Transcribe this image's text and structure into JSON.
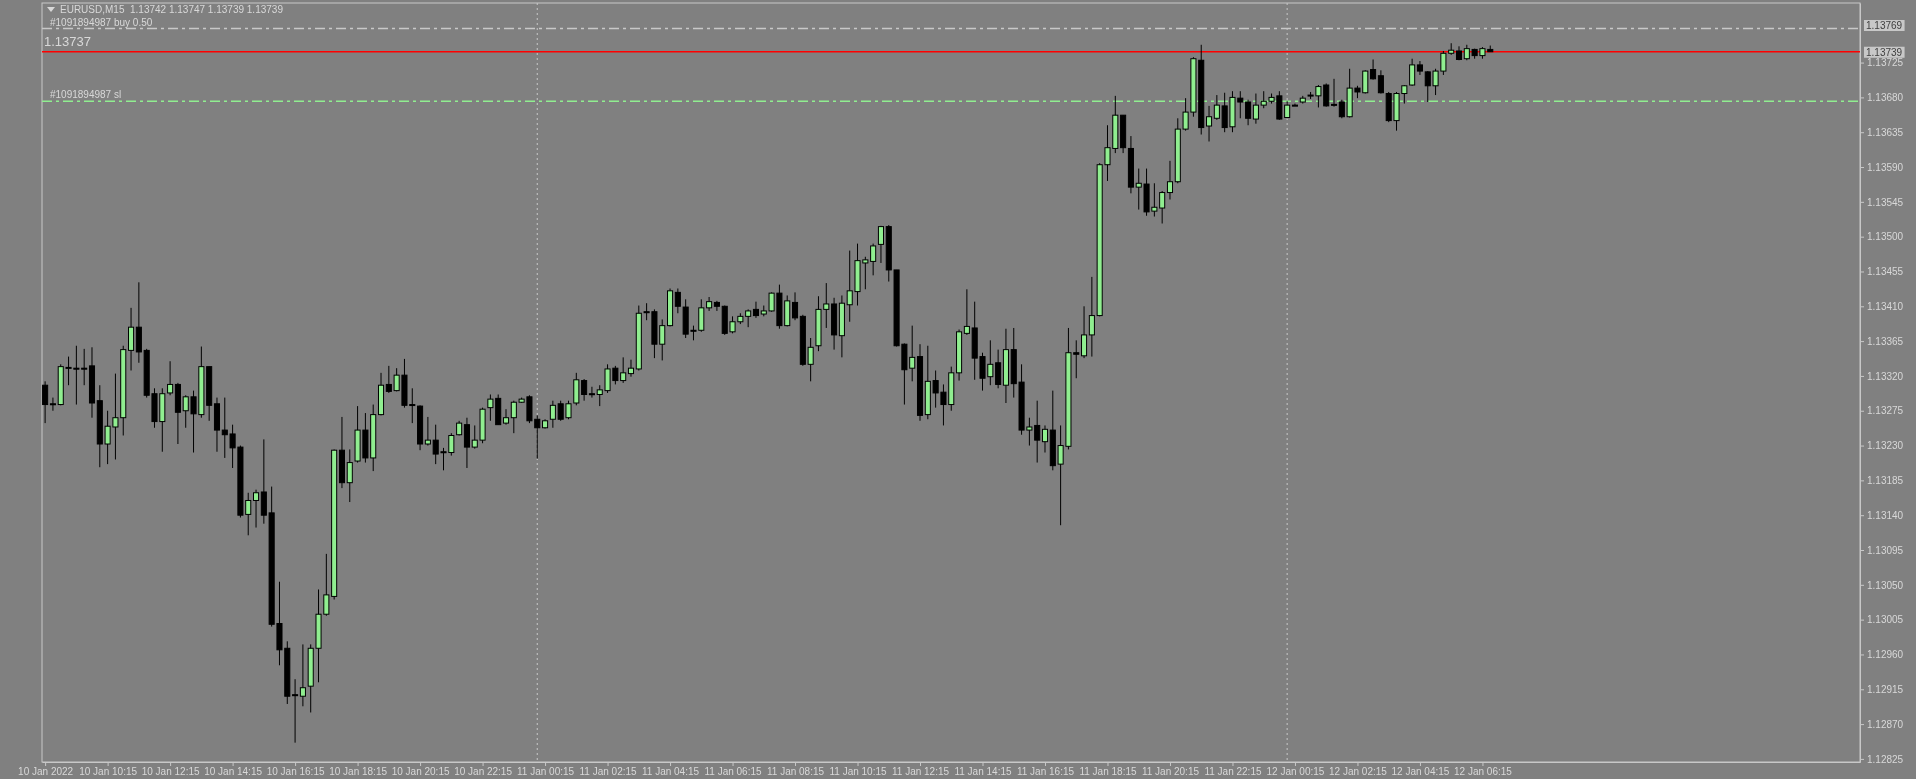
{
  "chart_data": {
    "type": "candlestick",
    "title": "EURUSD,M15  1.13742 1.13747 1.13739 1.13739",
    "annotations": [
      "1.13737",
      "1.13769"
    ],
    "x": [
      "2022-01-10T08:15",
      "2022-01-10T08:30",
      "2022-01-10T08:45",
      "2022-01-10T09:00",
      "2022-01-10T09:15",
      "2022-01-10T09:30",
      "2022-01-10T09:45",
      "2022-01-10T10:00",
      "2022-01-10T10:15",
      "2022-01-10T10:30",
      "2022-01-10T10:45",
      "2022-01-10T11:00",
      "2022-01-10T11:15",
      "2022-01-10T11:30",
      "2022-01-10T11:45",
      "2022-01-10T12:00",
      "2022-01-10T12:15",
      "2022-01-10T12:30",
      "2022-01-10T12:45",
      "2022-01-10T13:00",
      "2022-01-10T13:15",
      "2022-01-10T13:30",
      "2022-01-10T13:45",
      "2022-01-10T14:00",
      "2022-01-10T14:15",
      "2022-01-10T14:30",
      "2022-01-10T14:45",
      "2022-01-10T15:00",
      "2022-01-10T15:15",
      "2022-01-10T15:30",
      "2022-01-10T15:45",
      "2022-01-10T16:00",
      "2022-01-10T16:15",
      "2022-01-10T16:30",
      "2022-01-10T16:45",
      "2022-01-10T17:00",
      "2022-01-10T17:15",
      "2022-01-10T17:30",
      "2022-01-10T17:45",
      "2022-01-10T18:00",
      "2022-01-10T18:15",
      "2022-01-10T18:30",
      "2022-01-10T18:45",
      "2022-01-10T19:00",
      "2022-01-10T19:15",
      "2022-01-10T19:30",
      "2022-01-10T19:45",
      "2022-01-10T20:00",
      "2022-01-10T20:15",
      "2022-01-10T20:30",
      "2022-01-10T20:45",
      "2022-01-10T21:00",
      "2022-01-10T21:15",
      "2022-01-10T21:30",
      "2022-01-10T21:45",
      "2022-01-10T22:00",
      "2022-01-10T22:15",
      "2022-01-10T22:30",
      "2022-01-10T22:45",
      "2022-01-10T23:00",
      "2022-01-10T23:15",
      "2022-01-10T23:30",
      "2022-01-10T23:45",
      "2022-01-11T00:00",
      "2022-01-11T00:15",
      "2022-01-11T00:30",
      "2022-01-11T00:45",
      "2022-01-11T01:00",
      "2022-01-11T01:15",
      "2022-01-11T01:30",
      "2022-01-11T01:45",
      "2022-01-11T02:00",
      "2022-01-11T02:15",
      "2022-01-11T02:30",
      "2022-01-11T02:45",
      "2022-01-11T03:00",
      "2022-01-11T03:15",
      "2022-01-11T03:30",
      "2022-01-11T03:45",
      "2022-01-11T04:00",
      "2022-01-11T04:15",
      "2022-01-11T04:30",
      "2022-01-11T04:45",
      "2022-01-11T05:00",
      "2022-01-11T05:15",
      "2022-01-11T05:30",
      "2022-01-11T05:45",
      "2022-01-11T06:00",
      "2022-01-11T06:15",
      "2022-01-11T06:30",
      "2022-01-11T06:45",
      "2022-01-11T07:00",
      "2022-01-11T07:15",
      "2022-01-11T07:30",
      "2022-01-11T07:45",
      "2022-01-11T08:00",
      "2022-01-11T08:15",
      "2022-01-11T08:30",
      "2022-01-11T08:45",
      "2022-01-11T09:00",
      "2022-01-11T09:15",
      "2022-01-11T09:30",
      "2022-01-11T09:45",
      "2022-01-11T10:00",
      "2022-01-11T10:15",
      "2022-01-11T10:30",
      "2022-01-11T10:45",
      "2022-01-11T11:00",
      "2022-01-11T11:15",
      "2022-01-11T11:30",
      "2022-01-11T11:45",
      "2022-01-11T12:00",
      "2022-01-11T12:15",
      "2022-01-11T12:30",
      "2022-01-11T12:45",
      "2022-01-11T13:00",
      "2022-01-11T13:15",
      "2022-01-11T13:30",
      "2022-01-11T13:45",
      "2022-01-11T14:00",
      "2022-01-11T14:15",
      "2022-01-11T14:30",
      "2022-01-11T14:45",
      "2022-01-11T15:00",
      "2022-01-11T15:15",
      "2022-01-11T15:30",
      "2022-01-11T15:45",
      "2022-01-11T16:00",
      "2022-01-11T16:15",
      "2022-01-11T16:30",
      "2022-01-11T16:45",
      "2022-01-11T17:00",
      "2022-01-11T17:15",
      "2022-01-11T17:30",
      "2022-01-11T17:45",
      "2022-01-11T18:00",
      "2022-01-11T18:15",
      "2022-01-11T18:30",
      "2022-01-11T18:45",
      "2022-01-11T19:00",
      "2022-01-11T19:15",
      "2022-01-11T19:30",
      "2022-01-11T19:45",
      "2022-01-11T20:00",
      "2022-01-11T20:15",
      "2022-01-11T20:30",
      "2022-01-11T20:45",
      "2022-01-11T21:00",
      "2022-01-11T21:15",
      "2022-01-11T21:30",
      "2022-01-11T21:45",
      "2022-01-11T22:00",
      "2022-01-11T22:15",
      "2022-01-11T22:30",
      "2022-01-11T22:45",
      "2022-01-11T23:00",
      "2022-01-11T23:15",
      "2022-01-11T23:30",
      "2022-01-11T23:45",
      "2022-01-12T00:00",
      "2022-01-12T00:15",
      "2022-01-12T00:30",
      "2022-01-12T00:45",
      "2022-01-12T01:00",
      "2022-01-12T01:15",
      "2022-01-12T01:30",
      "2022-01-12T01:45",
      "2022-01-12T02:00",
      "2022-01-12T02:15",
      "2022-01-12T02:30",
      "2022-01-12T02:45",
      "2022-01-12T03:00",
      "2022-01-12T03:15",
      "2022-01-12T03:30",
      "2022-01-12T03:45",
      "2022-01-12T04:00",
      "2022-01-12T04:15",
      "2022-01-12T04:30",
      "2022-01-12T04:45",
      "2022-01-12T05:00",
      "2022-01-12T05:15",
      "2022-01-12T05:30",
      "2022-01-12T05:45",
      "2022-01-12T06:00",
      "2022-01-12T06:15",
      "2022-01-12T06:30"
    ],
    "ohlc": [
      [
        1.13308,
        1.13313,
        1.13259,
        1.13283
      ],
      [
        1.13284,
        1.13292,
        1.13275,
        1.13283
      ],
      [
        1.13283,
        1.13335,
        1.13282,
        1.13332
      ],
      [
        1.1333,
        1.13345,
        1.13308,
        1.13331
      ],
      [
        1.1333,
        1.13359,
        1.13283,
        1.1333
      ],
      [
        1.1333,
        1.13355,
        1.13308,
        1.1333
      ],
      [
        1.13333,
        1.13357,
        1.13266,
        1.13285
      ],
      [
        1.13288,
        1.13308,
        1.13202,
        1.13232
      ],
      [
        1.13232,
        1.13275,
        1.13206,
        1.13255
      ],
      [
        1.13254,
        1.13323,
        1.13212,
        1.13266
      ],
      [
        1.13266,
        1.13359,
        1.13243,
        1.13354
      ],
      [
        1.13353,
        1.13408,
        1.13327,
        1.13383
      ],
      [
        1.13383,
        1.13441,
        1.13337,
        1.13351
      ],
      [
        1.13353,
        1.13355,
        1.13292,
        1.13295
      ],
      [
        1.13297,
        1.13304,
        1.13253,
        1.13261
      ],
      [
        1.13261,
        1.13304,
        1.13222,
        1.13297
      ],
      [
        1.13298,
        1.13339,
        1.13295,
        1.13309
      ],
      [
        1.13309,
        1.13311,
        1.13232,
        1.13273
      ],
      [
        1.13275,
        1.13295,
        1.13253,
        1.13293
      ],
      [
        1.13293,
        1.13301,
        1.13221,
        1.13271
      ],
      [
        1.1327,
        1.13358,
        1.13266,
        1.13332
      ],
      [
        1.13332,
        1.13332,
        1.13262,
        1.13282
      ],
      [
        1.13284,
        1.13292,
        1.13222,
        1.1325
      ],
      [
        1.1325,
        1.13292,
        1.13214,
        1.13244
      ],
      [
        1.13245,
        1.13257,
        1.13201,
        1.13227
      ],
      [
        1.13228,
        1.1323,
        1.13137,
        1.1314
      ],
      [
        1.13141,
        1.13169,
        1.13114,
        1.13159
      ],
      [
        1.13159,
        1.13173,
        1.13124,
        1.13169
      ],
      [
        1.1317,
        1.13238,
        1.13129,
        1.1314
      ],
      [
        1.13143,
        1.13177,
        1.12996,
        1.12999
      ],
      [
        1.13,
        1.13054,
        1.12946,
        1.12966
      ],
      [
        1.12968,
        1.12977,
        1.12896,
        1.12906
      ],
      [
        1.12908,
        1.12928,
        1.12846,
        1.12907
      ],
      [
        1.12906,
        1.12973,
        1.12893,
        1.12917
      ],
      [
        1.12919,
        1.12973,
        1.12885,
        1.12968
      ],
      [
        1.12968,
        1.13044,
        1.12924,
        1.13012
      ],
      [
        1.13012,
        1.1309,
        1.1301,
        1.13037
      ],
      [
        1.13035,
        1.13225,
        1.13031,
        1.13224
      ],
      [
        1.13224,
        1.13267,
        1.13175,
        1.13182
      ],
      [
        1.13182,
        1.13225,
        1.13157,
        1.13208
      ],
      [
        1.1321,
        1.13281,
        1.13208,
        1.1325
      ],
      [
        1.1325,
        1.13272,
        1.13208,
        1.13214
      ],
      [
        1.13214,
        1.13283,
        1.13197,
        1.1327
      ],
      [
        1.1327,
        1.13324,
        1.13269,
        1.13308
      ],
      [
        1.13309,
        1.13333,
        1.13298,
        1.133
      ],
      [
        1.13301,
        1.1333,
        1.133,
        1.13321
      ],
      [
        1.13321,
        1.13342,
        1.13279,
        1.13282
      ],
      [
        1.13283,
        1.13304,
        1.13259,
        1.13283
      ],
      [
        1.13281,
        1.13282,
        1.13224,
        1.13232
      ],
      [
        1.13232,
        1.13267,
        1.1323,
        1.13237
      ],
      [
        1.13237,
        1.13257,
        1.13206,
        1.13219
      ],
      [
        1.13222,
        1.13227,
        1.13198,
        1.13222
      ],
      [
        1.13221,
        1.13246,
        1.13217,
        1.13243
      ],
      [
        1.13244,
        1.13262,
        1.13243,
        1.13259
      ],
      [
        1.13257,
        1.13266,
        1.13201,
        1.13228
      ],
      [
        1.13228,
        1.13256,
        1.13226,
        1.13237
      ],
      [
        1.13237,
        1.13279,
        1.13233,
        1.13277
      ],
      [
        1.13279,
        1.13296,
        1.13262,
        1.1329
      ],
      [
        1.13291,
        1.13296,
        1.13257,
        1.13257
      ],
      [
        1.13259,
        1.13277,
        1.13257,
        1.13266
      ],
      [
        1.13266,
        1.13288,
        1.13246,
        1.13286
      ],
      [
        1.13286,
        1.13292,
        1.13285,
        1.1329
      ],
      [
        1.13293,
        1.13295,
        1.13259,
        1.13262
      ],
      [
        1.13264,
        1.13269,
        1.13213,
        1.13253
      ],
      [
        1.13253,
        1.13264,
        1.13252,
        1.13262
      ],
      [
        1.13264,
        1.13288,
        1.13253,
        1.13282
      ],
      [
        1.13284,
        1.13288,
        1.13262,
        1.13264
      ],
      [
        1.13266,
        1.13288,
        1.13264,
        1.13284
      ],
      [
        1.13285,
        1.13324,
        1.13282,
        1.13315
      ],
      [
        1.13314,
        1.13316,
        1.13288,
        1.13296
      ],
      [
        1.13297,
        1.13306,
        1.13292,
        1.13296
      ],
      [
        1.13296,
        1.13308,
        1.13281,
        1.13302
      ],
      [
        1.13301,
        1.13335,
        1.13298,
        1.13329
      ],
      [
        1.1333,
        1.13333,
        1.13309,
        1.13314
      ],
      [
        1.13314,
        1.13344,
        1.13311,
        1.13324
      ],
      [
        1.13323,
        1.13341,
        1.13319,
        1.1333
      ],
      [
        1.13329,
        1.13411,
        1.13327,
        1.13401
      ],
      [
        1.13403,
        1.13414,
        1.13392,
        1.13402
      ],
      [
        1.13403,
        1.13406,
        1.13343,
        1.13361
      ],
      [
        1.13361,
        1.13393,
        1.1334,
        1.13385
      ],
      [
        1.13385,
        1.13433,
        1.13384,
        1.1343
      ],
      [
        1.13428,
        1.13433,
        1.13401,
        1.1341
      ],
      [
        1.13409,
        1.13419,
        1.13369,
        1.13374
      ],
      [
        1.13379,
        1.13385,
        1.13366,
        1.13378
      ],
      [
        1.13379,
        1.13419,
        1.13377,
        1.13408
      ],
      [
        1.13408,
        1.13422,
        1.13404,
        1.13416
      ],
      [
        1.13415,
        1.13417,
        1.13404,
        1.1341
      ],
      [
        1.1341,
        1.13411,
        1.13373,
        1.13375
      ],
      [
        1.13377,
        1.13397,
        1.13375,
        1.1339
      ],
      [
        1.1339,
        1.13401,
        1.13387,
        1.13397
      ],
      [
        1.13397,
        1.13406,
        1.13383,
        1.13404
      ],
      [
        1.13406,
        1.13416,
        1.13395,
        1.13398
      ],
      [
        1.134,
        1.13411,
        1.13397,
        1.13404
      ],
      [
        1.13404,
        1.13428,
        1.13403,
        1.13427
      ],
      [
        1.13427,
        1.13438,
        1.13381,
        1.13385
      ],
      [
        1.13385,
        1.13424,
        1.13384,
        1.13417
      ],
      [
        1.13415,
        1.13428,
        1.13392,
        1.13395
      ],
      [
        1.13397,
        1.13399,
        1.13333,
        1.13335
      ],
      [
        1.13335,
        1.13369,
        1.13313,
        1.13357
      ],
      [
        1.13359,
        1.13423,
        1.13352,
        1.13406
      ],
      [
        1.13406,
        1.1344,
        1.13382,
        1.13413
      ],
      [
        1.13413,
        1.13421,
        1.13354,
        1.13373
      ],
      [
        1.13372,
        1.13424,
        1.13344,
        1.13414
      ],
      [
        1.13412,
        1.13482,
        1.1339,
        1.1343
      ],
      [
        1.13429,
        1.13491,
        1.13411,
        1.13469
      ],
      [
        1.13466,
        1.13474,
        1.13432,
        1.1347
      ],
      [
        1.13468,
        1.13491,
        1.1345,
        1.13488
      ],
      [
        1.1349,
        1.13514,
        1.13466,
        1.13513
      ],
      [
        1.13513,
        1.13515,
        1.13442,
        1.13457
      ],
      [
        1.13457,
        1.13457,
        1.13358,
        1.13359
      ],
      [
        1.13361,
        1.13362,
        1.13283,
        1.13328
      ],
      [
        1.1333,
        1.13385,
        1.13313,
        1.13344
      ],
      [
        1.13345,
        1.13361,
        1.13262,
        1.13269
      ],
      [
        1.1327,
        1.13359,
        1.13264,
        1.13313
      ],
      [
        1.13314,
        1.13327,
        1.13279,
        1.13298
      ],
      [
        1.13299,
        1.13309,
        1.13256,
        1.13283
      ],
      [
        1.13283,
        1.13332,
        1.13275,
        1.13324
      ],
      [
        1.13324,
        1.1338,
        1.13314,
        1.13377
      ],
      [
        1.13375,
        1.13432,
        1.13373,
        1.13384
      ],
      [
        1.13382,
        1.13416,
        1.13315,
        1.13343
      ],
      [
        1.13345,
        1.1335,
        1.13301,
        1.13317
      ],
      [
        1.13319,
        1.13366,
        1.13308,
        1.13335
      ],
      [
        1.13337,
        1.13354,
        1.13304,
        1.13309
      ],
      [
        1.13308,
        1.13381,
        1.13285,
        1.13354
      ],
      [
        1.13354,
        1.13382,
        1.13292,
        1.1331
      ],
      [
        1.13312,
        1.13335,
        1.13244,
        1.1325
      ],
      [
        1.1325,
        1.13266,
        1.1323,
        1.13254
      ],
      [
        1.13256,
        1.13288,
        1.13208,
        1.13237
      ],
      [
        1.13235,
        1.13256,
        1.13221,
        1.13251
      ],
      [
        1.1325,
        1.13301,
        1.13198,
        1.13204
      ],
      [
        1.13206,
        1.13256,
        1.13127,
        1.1323
      ],
      [
        1.13229,
        1.13382,
        1.13225,
        1.1335
      ],
      [
        1.1335,
        1.13366,
        1.13317,
        1.13348
      ],
      [
        1.13346,
        1.1341,
        1.13343,
        1.13373
      ],
      [
        1.13373,
        1.13448,
        1.13345,
        1.13398
      ],
      [
        1.13398,
        1.13595,
        1.13397,
        1.13593
      ],
      [
        1.13593,
        1.13644,
        1.13572,
        1.13615
      ],
      [
        1.13614,
        1.13682,
        1.13608,
        1.13657
      ],
      [
        1.13657,
        1.13657,
        1.13608,
        1.13615
      ],
      [
        1.13614,
        1.1363,
        1.13556,
        1.13564
      ],
      [
        1.13564,
        1.13588,
        1.13535,
        1.13569
      ],
      [
        1.13568,
        1.13588,
        1.13527,
        1.13532
      ],
      [
        1.13533,
        1.13569,
        1.13526,
        1.13538
      ],
      [
        1.13537,
        1.13559,
        1.13517,
        1.13557
      ],
      [
        1.13557,
        1.13598,
        1.13548,
        1.13571
      ],
      [
        1.13571,
        1.13653,
        1.13569,
        1.13639
      ],
      [
        1.13639,
        1.13679,
        1.13637,
        1.13661
      ],
      [
        1.13661,
        1.13732,
        1.13655,
        1.1373
      ],
      [
        1.13728,
        1.13748,
        1.13632,
        1.13641
      ],
      [
        1.13643,
        1.13669,
        1.13623,
        1.13655
      ],
      [
        1.13653,
        1.13683,
        1.13651,
        1.1367
      ],
      [
        1.13669,
        1.13686,
        1.13635,
        1.13641
      ],
      [
        1.13642,
        1.13688,
        1.13635,
        1.1368
      ],
      [
        1.13679,
        1.13688,
        1.13653,
        1.13674
      ],
      [
        1.13674,
        1.13677,
        1.13644,
        1.13653
      ],
      [
        1.13652,
        1.13685,
        1.13646,
        1.1367
      ],
      [
        1.1367,
        1.13688,
        1.13666,
        1.13675
      ],
      [
        1.13675,
        1.13685,
        1.13672,
        1.1368
      ],
      [
        1.13682,
        1.13688,
        1.13651,
        1.13652
      ],
      [
        1.13654,
        1.13675,
        1.13653,
        1.1367
      ],
      [
        1.1367,
        1.13672,
        1.13669,
        1.1367
      ],
      [
        1.13674,
        1.13682,
        1.13672,
        1.13679
      ],
      [
        1.13683,
        1.13687,
        1.13678,
        1.13683
      ],
      [
        1.13682,
        1.13696,
        1.13667,
        1.13694
      ],
      [
        1.13696,
        1.13698,
        1.13668,
        1.13669
      ],
      [
        1.13671,
        1.13704,
        1.13668,
        1.1367
      ],
      [
        1.13674,
        1.13677,
        1.13653,
        1.13655
      ],
      [
        1.13655,
        1.13717,
        1.13654,
        1.13692
      ],
      [
        1.13692,
        1.13695,
        1.13679,
        1.13687
      ],
      [
        1.13686,
        1.13715,
        1.13685,
        1.13714
      ],
      [
        1.13716,
        1.13729,
        1.13703,
        1.13704
      ],
      [
        1.13708,
        1.13715,
        1.13685,
        1.13686
      ],
      [
        1.13685,
        1.13687,
        1.13648,
        1.1365
      ],
      [
        1.1365,
        1.13687,
        1.13637,
        1.13685
      ],
      [
        1.13685,
        1.13696,
        1.13672,
        1.13695
      ],
      [
        1.13696,
        1.1373,
        1.13695,
        1.13722
      ],
      [
        1.13722,
        1.13727,
        1.13709,
        1.13714
      ],
      [
        1.13713,
        1.13714,
        1.13674,
        1.13695
      ],
      [
        1.13695,
        1.13717,
        1.13683,
        1.13714
      ],
      [
        1.13714,
        1.1374,
        1.13709,
        1.13737
      ],
      [
        1.13737,
        1.1375,
        1.13735,
        1.13741
      ],
      [
        1.1374,
        1.13746,
        1.13728,
        1.13729
      ],
      [
        1.1373,
        1.13748,
        1.13728,
        1.13743
      ],
      [
        1.13742,
        1.13743,
        1.1373,
        1.13734
      ],
      [
        1.13734,
        1.13745,
        1.1373,
        1.13743
      ],
      [
        1.13742,
        1.13747,
        1.13739,
        1.13739
      ]
    ],
    "colors": [
      "#000000",
      "#000000",
      "#90ee90",
      "#90ee90",
      "#000000",
      "#000000",
      "#000000",
      "#000000",
      "#90ee90",
      "#90ee90",
      "#90ee90",
      "#90ee90",
      "#000000",
      "#000000",
      "#000000",
      "#90ee90",
      "#90ee90",
      "#000000",
      "#90ee90",
      "#000000",
      "#90ee90",
      "#000000",
      "#000000",
      "#000000",
      "#000000",
      "#000000",
      "#90ee90",
      "#90ee90",
      "#000000",
      "#000000",
      "#000000",
      "#000000",
      "#000000",
      "#90ee90",
      "#90ee90",
      "#90ee90",
      "#90ee90",
      "#90ee90",
      "#000000",
      "#90ee90",
      "#90ee90",
      "#000000",
      "#90ee90",
      "#90ee90",
      "#000000",
      "#90ee90",
      "#000000",
      "#000000",
      "#000000",
      "#90ee90",
      "#000000",
      "#000000",
      "#90ee90",
      "#90ee90",
      "#000000",
      "#90ee90",
      "#90ee90",
      "#90ee90",
      "#000000",
      "#90ee90",
      "#90ee90",
      "#90ee90",
      "#000000",
      "#000000",
      "#90ee90",
      "#90ee90",
      "#000000",
      "#90ee90",
      "#90ee90",
      "#000000",
      "#000000",
      "#90ee90",
      "#90ee90",
      "#000000",
      "#90ee90",
      "#90ee90",
      "#90ee90",
      "#000000",
      "#000000",
      "#90ee90",
      "#90ee90",
      "#000000",
      "#000000",
      "#000000",
      "#90ee90",
      "#90ee90",
      "#000000",
      "#000000",
      "#90ee90",
      "#90ee90",
      "#90ee90",
      "#000000",
      "#90ee90",
      "#90ee90",
      "#000000",
      "#90ee90",
      "#000000",
      "#000000",
      "#90ee90",
      "#90ee90",
      "#90ee90",
      "#000000",
      "#90ee90",
      "#90ee90",
      "#90ee90",
      "#90ee90",
      "#90ee90",
      "#90ee90",
      "#000000",
      "#000000",
      "#000000",
      "#90ee90",
      "#000000",
      "#90ee90",
      "#000000",
      "#000000",
      "#90ee90",
      "#90ee90",
      "#90ee90",
      "#000000",
      "#000000",
      "#90ee90",
      "#000000",
      "#90ee90",
      "#000000",
      "#000000",
      "#90ee90",
      "#000000",
      "#90ee90",
      "#000000",
      "#90ee90",
      "#90ee90",
      "#000000",
      "#90ee90",
      "#90ee90",
      "#90ee90",
      "#90ee90",
      "#90ee90",
      "#000000",
      "#000000",
      "#90ee90",
      "#000000",
      "#90ee90",
      "#90ee90",
      "#90ee90",
      "#90ee90",
      "#90ee90",
      "#90ee90",
      "#000000",
      "#90ee90",
      "#90ee90",
      "#000000",
      "#90ee90",
      "#000000",
      "#000000",
      "#90ee90",
      "#90ee90",
      "#90ee90",
      "#000000",
      "#90ee90",
      "#000000",
      "#90ee90",
      "#000000",
      "#90ee90",
      "#000000",
      "#000000",
      "#000000",
      "#90ee90",
      "#000000",
      "#90ee90",
      "#000000",
      "#000000",
      "#000000",
      "#90ee90",
      "#90ee90",
      "#90ee90",
      "#000000",
      "#000000",
      "#90ee90",
      "#90ee90",
      "#90ee90",
      "#000000",
      "#90ee90",
      "#000000",
      "#90ee90",
      "#000000"
    ],
    "xlim": [
      "2022-01-10T08:09",
      "2022-01-12T18:20"
    ],
    "xticks": [
      {
        "value": "2022-01-10T08:15",
        "label": "10 Jan 2022"
      },
      {
        "value": "2022-01-10T10:15",
        "label": "10 Jan 10:15"
      },
      {
        "value": "2022-01-10T12:15",
        "label": "10 Jan 12:15"
      },
      {
        "value": "2022-01-10T14:15",
        "label": "10 Jan 14:15"
      },
      {
        "value": "2022-01-10T16:15",
        "label": "10 Jan 16:15"
      },
      {
        "value": "2022-01-10T18:15",
        "label": "10 Jan 18:15"
      },
      {
        "value": "2022-01-10T20:15",
        "label": "10 Jan 20:15"
      },
      {
        "value": "2022-01-10T22:15",
        "label": "10 Jan 22:15"
      },
      {
        "value": "2022-01-11T00:15",
        "label": "11 Jan 00:15"
      },
      {
        "value": "2022-01-11T02:15",
        "label": "11 Jan 02:15"
      },
      {
        "value": "2022-01-11T04:15",
        "label": "11 Jan 04:15"
      },
      {
        "value": "2022-01-11T06:15",
        "label": "11 Jan 06:15"
      },
      {
        "value": "2022-01-11T08:15",
        "label": "11 Jan 08:15"
      },
      {
        "value": "2022-01-11T10:15",
        "label": "11 Jan 10:15"
      },
      {
        "value": "2022-01-11T12:15",
        "label": "11 Jan 12:15"
      },
      {
        "value": "2022-01-11T14:15",
        "label": "11 Jan 14:15"
      },
      {
        "value": "2022-01-11T16:15",
        "label": "11 Jan 16:15"
      },
      {
        "value": "2022-01-11T18:15",
        "label": "11 Jan 18:15"
      },
      {
        "value": "2022-01-11T20:15",
        "label": "11 Jan 20:15"
      },
      {
        "value": "2022-01-11T22:15",
        "label": "11 Jan 22:15"
      },
      {
        "value": "2022-01-12T00:15",
        "label": "12 Jan 00:15"
      },
      {
        "value": "2022-01-12T02:15",
        "label": "12 Jan 02:15"
      },
      {
        "value": "2022-01-12T04:15",
        "label": "12 Jan 04:15"
      },
      {
        "value": "2022-01-12T06:15",
        "label": "12 Jan 06:15"
      }
    ],
    "ylim": [
      1.12821,
      1.13802
    ],
    "yticks": [
      1.13725,
      {
        "value": 1.1368,
        "label": "1.13680"
      },
      1.13635,
      {
        "value": 1.1359,
        "label": "1.13590"
      },
      1.13545,
      {
        "value": 1.135,
        "label": "1.13500"
      },
      1.13455,
      {
        "value": 1.1341,
        "label": "1.13410"
      },
      1.13365,
      {
        "value": 1.1332,
        "label": "1.13320"
      },
      1.13275,
      {
        "value": 1.1323,
        "label": "1.13230"
      },
      1.13185,
      {
        "value": 1.1314,
        "label": "1.13140"
      },
      1.13095,
      {
        "value": 1.1305,
        "label": "1.13050"
      },
      1.13005,
      {
        "value": 1.1296,
        "label": "1.12960"
      },
      1.12915,
      {
        "value": 1.1287,
        "label": "1.12870"
      },
      1.12825
    ],
    "ref_lines": [
      {
        "axis": "y",
        "value": 1.13769,
        "label": "#1091894987 buy 0.50",
        "color": "#c8c8c8",
        "line_style": "dashed"
      },
      {
        "axis": "y",
        "value": 1.13739,
        "label": "1.13739",
        "color": "#ff0000",
        "line_style": "solid"
      },
      {
        "axis": "y",
        "value": 1.13675,
        "label": "#1091894987 sl",
        "color": "#90ee90",
        "line_style": "dashed"
      },
      {
        "axis": "x",
        "value": "2022-01-11T00:00",
        "color": "#c8c8c8",
        "line_style": "dotted"
      },
      {
        "axis": "x",
        "value": "2022-01-12T00:00",
        "color": "#c8c8c8",
        "line_style": "dotted"
      }
    ]
  }
}
